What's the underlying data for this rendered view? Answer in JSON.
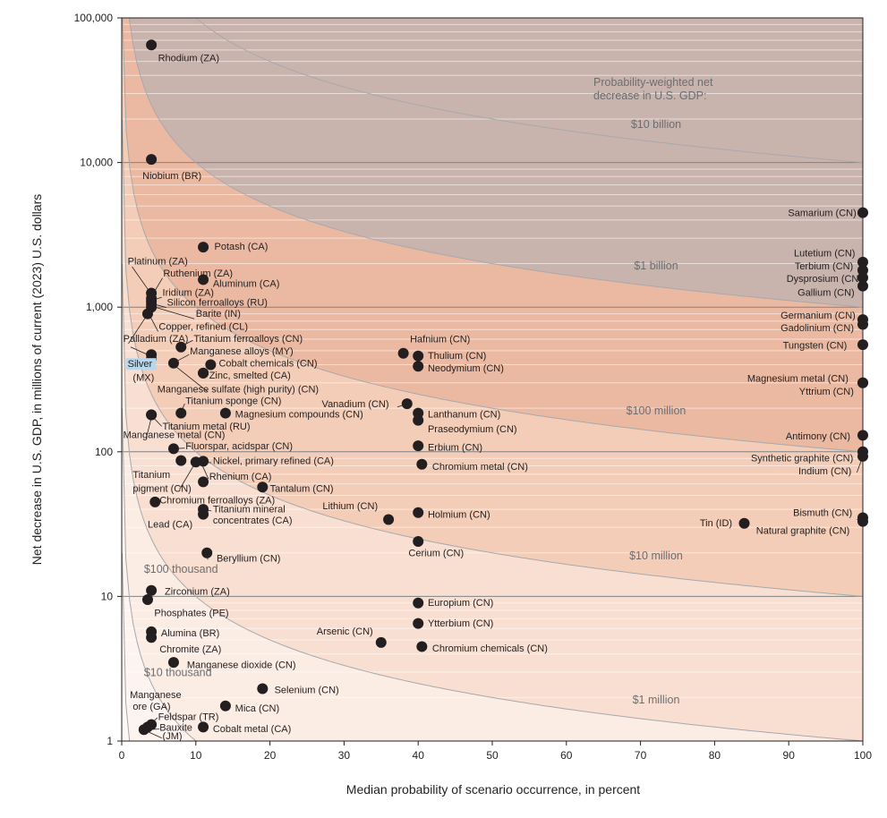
{
  "chart_data": {
    "type": "scatter",
    "title": "",
    "xlabel": "Median probability of scenario occurrence, in percent",
    "ylabel": "Net decrease in U.S. GDP, in millions of current (2023) U.S. dollars",
    "xlim": [
      0,
      100
    ],
    "ylim": [
      1,
      100000
    ],
    "yscale": "log",
    "grid": "horizontal minor lines (log scale)",
    "x_ticks": [
      "0",
      "10",
      "20",
      "30",
      "40",
      "50",
      "60",
      "70",
      "80",
      "90",
      "100"
    ],
    "y_ticks": [
      "1",
      "10",
      "100",
      "1,000",
      "10,000",
      "100,000"
    ],
    "colors": {
      "point": "#231f20",
      "highlight": "#b9d7ec",
      "band_10b": "#c9b3ad",
      "band_1b": "#ebb9a1",
      "band_100m": "#f3cdb7",
      "band_10m": "#f8dfd1",
      "band_1m": "#fbece4",
      "band_100k": "#fdf4ef",
      "band_low": "#fff9f6"
    },
    "legend_title": [
      "Probability-weighted net",
      "decrease in U.S. GDP:"
    ],
    "contours": [
      {
        "label": "$10 billion",
        "value": 10000
      },
      {
        "label": "$1 billion",
        "value": 1000
      },
      {
        "label": "$100 million",
        "value": 100
      },
      {
        "label": "$10 million",
        "value": 10
      },
      {
        "label": "$1 million",
        "value": 1
      },
      {
        "label": "$100 thousand",
        "value": 0.1
      },
      {
        "label": "$10 thousand",
        "value": 0.01
      }
    ],
    "points": [
      {
        "name": "Rhodium (ZA)",
        "x": 4,
        "y": 65000
      },
      {
        "name": "Niobium (BR)",
        "x": 4,
        "y": 10500
      },
      {
        "name": "Potash (CA)",
        "x": 11,
        "y": 2600
      },
      {
        "name": "Platinum (ZA)",
        "x": 4,
        "y": 1250
      },
      {
        "name": "Ruthenium (ZA)",
        "x": 4,
        "y": 1150
      },
      {
        "name": "Aluminum (CA)",
        "x": 11,
        "y": 1550
      },
      {
        "name": "Iridium (ZA)",
        "x": 4,
        "y": 1100
      },
      {
        "name": "Silicon ferroalloys (RU)",
        "x": 4,
        "y": 1050
      },
      {
        "name": "Barite (IN)",
        "x": 4,
        "y": 1000
      },
      {
        "name": "Copper, refined (CL)",
        "x": 3.5,
        "y": 900
      },
      {
        "name": "Palladium (ZA)",
        "x": 4,
        "y": 470
      },
      {
        "name": "Silver (MX)",
        "x": 4,
        "y": 440
      },
      {
        "name": "Titanium ferroalloys (CN)",
        "x": 8,
        "y": 530
      },
      {
        "name": "Manganese alloys (MY)",
        "x": 7,
        "y": 410
      },
      {
        "name": "Cobalt chemicals (CN)",
        "x": 12,
        "y": 400
      },
      {
        "name": "Zinc, smelted (CA)",
        "x": 11,
        "y": 350
      },
      {
        "name": "Manganese sulfate (high purity) (CN)",
        "x": 11,
        "y": 350
      },
      {
        "name": "Titanium sponge (CN)",
        "x": 8,
        "y": 185
      },
      {
        "name": "Titanium metal (RU)",
        "x": 4,
        "y": 180
      },
      {
        "name": "Magnesium compounds (CN)",
        "x": 14,
        "y": 185
      },
      {
        "name": "Manganese metal (CN)",
        "x": 4,
        "y": 180
      },
      {
        "name": "Fluorspar, acidspar (CN)",
        "x": 7,
        "y": 105
      },
      {
        "name": "Nickel, primary refined (CA)",
        "x": 8,
        "y": 87
      },
      {
        "name": "Rhenium (CA)",
        "x": 10,
        "y": 85
      },
      {
        "name": "Titanium pigment (CN)",
        "x": 11,
        "y": 86
      },
      {
        "name": "Tantalum (CN)",
        "x": 19,
        "y": 57
      },
      {
        "name": "Chromium ferroalloys (ZA)",
        "x": 11,
        "y": 62
      },
      {
        "name": "Lead (CA)",
        "x": 4.5,
        "y": 45
      },
      {
        "name": "Titanium mineral concentrates (CA)",
        "x": 11,
        "y": 37
      },
      {
        "name": "Titanium mineral concentrates (CA) ",
        "x": 11,
        "y": 40
      },
      {
        "name": "Beryllium (CN)",
        "x": 11.5,
        "y": 20
      },
      {
        "name": "Zirconium (ZA)",
        "x": 4,
        "y": 11
      },
      {
        "name": "Phosphates (PE)",
        "x": 3.5,
        "y": 9.5
      },
      {
        "name": "Alumina (BR)",
        "x": 4,
        "y": 5.7
      },
      {
        "name": "Chromite (ZA)",
        "x": 4,
        "y": 5.2
      },
      {
        "name": "Manganese dioxide (CN)",
        "x": 7,
        "y": 3.5
      },
      {
        "name": "Selenium (CN)",
        "x": 19,
        "y": 2.3
      },
      {
        "name": "Mica (CN)",
        "x": 14,
        "y": 1.75
      },
      {
        "name": "Manganese ore (GA)",
        "x": 3.5,
        "y": 1.25
      },
      {
        "name": "Feldspar (TR)",
        "x": 4,
        "y": 1.3
      },
      {
        "name": "Bauxite (JM)",
        "x": 3,
        "y": 1.2
      },
      {
        "name": "Cobalt metal (CA)",
        "x": 11,
        "y": 1.25
      },
      {
        "name": "Hafnium (CN)",
        "x": 38,
        "y": 480
      },
      {
        "name": "Thulium (CN)",
        "x": 40,
        "y": 460
      },
      {
        "name": "Neodymium (CN)",
        "x": 40,
        "y": 390
      },
      {
        "name": "Vanadium (CN)",
        "x": 38.5,
        "y": 215
      },
      {
        "name": "Lanthanum (CN)",
        "x": 40,
        "y": 185
      },
      {
        "name": "Praseodymium (CN)",
        "x": 40,
        "y": 165
      },
      {
        "name": "Erbium (CN)",
        "x": 40,
        "y": 110
      },
      {
        "name": "Chromium metal (CN)",
        "x": 40.5,
        "y": 82
      },
      {
        "name": "Lithium (CN)",
        "x": 36,
        "y": 34
      },
      {
        "name": "Holmium (CN)",
        "x": 40,
        "y": 38
      },
      {
        "name": "Cerium (CN)",
        "x": 40,
        "y": 24
      },
      {
        "name": "Europium (CN)",
        "x": 40,
        "y": 9
      },
      {
        "name": "Ytterbium (CN)",
        "x": 40,
        "y": 6.5
      },
      {
        "name": "Arsenic (CN)",
        "x": 35,
        "y": 4.8
      },
      {
        "name": "Chromium chemicals (CN)",
        "x": 40.5,
        "y": 4.5
      },
      {
        "name": "Tin (ID)",
        "x": 84,
        "y": 32
      },
      {
        "name": "Samarium (CN)",
        "x": 100,
        "y": 4500
      },
      {
        "name": "Lutetium (CN)",
        "x": 100,
        "y": 2050
      },
      {
        "name": "Terbium (CN)",
        "x": 100,
        "y": 1800
      },
      {
        "name": "Dysprosium (CN)",
        "x": 100,
        "y": 1600
      },
      {
        "name": "Gallium (CN)",
        "x": 100,
        "y": 1400
      },
      {
        "name": "Germanium (CN)",
        "x": 100,
        "y": 820
      },
      {
        "name": "Gadolinium (CN)",
        "x": 100,
        "y": 760
      },
      {
        "name": "Tungsten (CN)",
        "x": 100,
        "y": 550
      },
      {
        "name": "Magnesium metal (CN)",
        "x": 100,
        "y": 300
      },
      {
        "name": "Yttrium (CN)",
        "x": 100,
        "y": 300
      },
      {
        "name": "Antimony (CN)",
        "x": 100,
        "y": 130
      },
      {
        "name": "Synthetic graphite (CN)",
        "x": 100,
        "y": 100
      },
      {
        "name": "Indium (CN)",
        "x": 100,
        "y": 93
      },
      {
        "name": "Bismuth (CN)",
        "x": 100,
        "y": 35
      },
      {
        "name": "Natural graphite (CN)",
        "x": 100,
        "y": 33
      }
    ],
    "labels": [
      {
        "text": "Rhodium (ZA)",
        "x": 4.9,
        "y": 50000
      },
      {
        "text": "Niobium (BR)",
        "x": 2.8,
        "y": 7700
      },
      {
        "text": "Potash (CA)",
        "x": 12.5,
        "y": 2500
      },
      {
        "text": "Platinum (ZA)",
        "x": 0.8,
        "y": 1980
      },
      {
        "text": "Ruthenium (ZA)",
        "x": 5.6,
        "y": 1630
      },
      {
        "text": "Aluminum (CA)",
        "x": 12.3,
        "y": 1380
      },
      {
        "text": "Iridium (ZA)",
        "x": 5.5,
        "y": 1200
      },
      {
        "text": "Silicon ferroalloys (RU)",
        "x": 6.1,
        "y": 1025
      },
      {
        "text": "Barite (IN)",
        "x": 10.0,
        "y": 855
      },
      {
        "text": "Copper, refined (CL)",
        "x": 5.0,
        "y": 695
      },
      {
        "text": "Palladium (ZA)",
        "x": 0.2,
        "y": 575
      },
      {
        "text": "Titanium ferroalloys (CN)",
        "x": 9.7,
        "y": 575
      },
      {
        "text": "Manganese alloys (MY)",
        "x": 9.2,
        "y": 470
      },
      {
        "text": "Silver",
        "x": 0.8,
        "y": 385
      },
      {
        "text": "(MX)",
        "x": 1.5,
        "y": 310
      },
      {
        "text": "Cobalt chemicals (CN)",
        "x": 13.1,
        "y": 390
      },
      {
        "text": "Zinc, smelted (CA)",
        "x": 11.8,
        "y": 320
      },
      {
        "text": "Manganese sulfate (high purity) (CN)",
        "x": 4.8,
        "y": 257
      },
      {
        "text": "Titanium sponge (CN)",
        "x": 8.6,
        "y": 213
      },
      {
        "text": "Magnesium compounds (CN)",
        "x": 15.3,
        "y": 172
      },
      {
        "text": "Titanium metal (RU)",
        "x": 5.5,
        "y": 142
      },
      {
        "text": "Manganese metal (CN)",
        "x": 0.2,
        "y": 124
      },
      {
        "text": "Fluorspar, acidspar (CN)",
        "x": 8.6,
        "y": 104
      },
      {
        "text": "Nickel, primary refined (CA)",
        "x": 12.3,
        "y": 82
      },
      {
        "text": "Titanium",
        "x": 1.5,
        "y": 66
      },
      {
        "text": "Rhenium (CA)",
        "x": 11.8,
        "y": 64
      },
      {
        "text": "pigment (CN)",
        "x": 1.5,
        "y": 53
      },
      {
        "text": "Tantalum (CN)",
        "x": 20.0,
        "y": 53
      },
      {
        "text": "Chromium ferroalloys (ZA)",
        "x": 5.1,
        "y": 44
      },
      {
        "text": "Titanium mineral",
        "x": 12.3,
        "y": 38
      },
      {
        "text": "concentrates (CA)",
        "x": 12.3,
        "y": 32
      },
      {
        "text": "Lead (CA)",
        "x": 3.5,
        "y": 30
      },
      {
        "text": "Beryllium (CN)",
        "x": 12.8,
        "y": 17.4
      },
      {
        "text": "$100 thousand",
        "x": 3.0,
        "y": 14.6,
        "style": "band"
      },
      {
        "text": "Zirconium (ZA)",
        "x": 5.8,
        "y": 10.3
      },
      {
        "text": "Phosphates (PE)",
        "x": 4.4,
        "y": 7.3
      },
      {
        "text": "Alumina (BR)",
        "x": 5.3,
        "y": 5.3
      },
      {
        "text": "Chromite (ZA)",
        "x": 5.1,
        "y": 4.1
      },
      {
        "text": "Manganese dioxide (CN)",
        "x": 8.8,
        "y": 3.2
      },
      {
        "text": "$10 thousand",
        "x": 3.0,
        "y": 2.8,
        "style": "band"
      },
      {
        "text": "Selenium (CN)",
        "x": 20.6,
        "y": 2.14
      },
      {
        "text": "Manganese",
        "x": 1.1,
        "y": 1.98
      },
      {
        "text": "ore (GA)",
        "x": 1.5,
        "y": 1.65
      },
      {
        "text": "Mica (CN)",
        "x": 15.3,
        "y": 1.6
      },
      {
        "text": "Feldspar (TR)",
        "x": 4.9,
        "y": 1.4
      },
      {
        "text": "Bauxite",
        "x": 5.1,
        "y": 1.18
      },
      {
        "text": "Cobalt metal (CA)",
        "x": 12.3,
        "y": 1.15
      },
      {
        "text": "(JM)",
        "x": 5.5,
        "y": 1.03
      },
      {
        "text": "Hafnium (CN)",
        "x": 38.9,
        "y": 570
      },
      {
        "text": "Thulium (CN)",
        "x": 41.3,
        "y": 440
      },
      {
        "text": "Neodymium (CN)",
        "x": 41.3,
        "y": 360
      },
      {
        "text": "Vanadium (CN)",
        "x": 27.0,
        "y": 204
      },
      {
        "text": "Lanthanum (CN)",
        "x": 41.3,
        "y": 172
      },
      {
        "text": "Praseodymium (CN)",
        "x": 41.3,
        "y": 136
      },
      {
        "text": "Erbium (CN)",
        "x": 41.3,
        "y": 102
      },
      {
        "text": "Chromium metal (CN)",
        "x": 41.9,
        "y": 75
      },
      {
        "text": "Lithium (CN)",
        "x": 27.1,
        "y": 40
      },
      {
        "text": "Holmium (CN)",
        "x": 41.3,
        "y": 35
      },
      {
        "text": "Cerium (CN)",
        "x": 38.7,
        "y": 19
      },
      {
        "text": "Europium (CN)",
        "x": 41.3,
        "y": 8.6
      },
      {
        "text": "Ytterbium (CN)",
        "x": 41.3,
        "y": 6.2
      },
      {
        "text": "Arsenic (CN)",
        "x": 26.3,
        "y": 5.45
      },
      {
        "text": "Chromium chemicals (CN)",
        "x": 41.9,
        "y": 4.15
      },
      {
        "text": "Tin (ID)",
        "x": 78.0,
        "y": 30.5
      },
      {
        "text": "Samarium (CN)",
        "x": 89.9,
        "y": 4250
      },
      {
        "text": "Lutetium (CN)",
        "x": 90.7,
        "y": 2240
      },
      {
        "text": "Terbium (CN)",
        "x": 90.8,
        "y": 1820
      },
      {
        "text": "Dysprosium (CN)",
        "x": 89.7,
        "y": 1490
      },
      {
        "text": "Gallium (CN)",
        "x": 91.2,
        "y": 1200
      },
      {
        "text": "Germanium (CN)",
        "x": 88.9,
        "y": 835
      },
      {
        "text": "Gadolinium (CN)",
        "x": 88.9,
        "y": 685
      },
      {
        "text": "Tungsten (CN)",
        "x": 89.2,
        "y": 518
      },
      {
        "text": "Magnesium metal (CN)",
        "x": 84.4,
        "y": 306
      },
      {
        "text": "Yttrium (CN)",
        "x": 91.4,
        "y": 248
      },
      {
        "text": "Antimony (CN)",
        "x": 89.6,
        "y": 122
      },
      {
        "text": "Synthetic graphite (CN)",
        "x": 84.9,
        "y": 86
      },
      {
        "text": "Indium (CN)",
        "x": 91.3,
        "y": 70
      },
      {
        "text": "Bismuth (CN)",
        "x": 90.6,
        "y": 36
      },
      {
        "text": "Natural graphite (CN)",
        "x": 85.6,
        "y": 27
      }
    ],
    "leaders": [
      [
        [
          1.4,
          1900
        ],
        [
          3.8,
          1270
        ]
      ],
      [
        [
          5.5,
          1590
        ],
        [
          4.0,
          1180
        ]
      ],
      [
        [
          5.4,
          1170
        ],
        [
          4.0,
          1110
        ]
      ],
      [
        [
          6.0,
          995
        ],
        [
          4.0,
          1060
        ]
      ],
      [
        [
          9.8,
          830
        ],
        [
          4.2,
          1010
        ]
      ],
      [
        [
          4.9,
          680
        ],
        [
          3.6,
          910
        ]
      ],
      [
        [
          0.9,
          560
        ],
        [
          3.4,
          880
        ]
      ],
      [
        [
          1.2,
          530
        ],
        [
          3.9,
          460
        ]
      ],
      [
        [
          9.6,
          590
        ],
        [
          8.0,
          535
        ]
      ],
      [
        [
          9.1,
          470
        ],
        [
          7.1,
          415
        ]
      ],
      [
        [
          11.6,
          260
        ],
        [
          7.0,
          400
        ]
      ],
      [
        [
          8.5,
          215
        ],
        [
          8.0,
          188
        ]
      ],
      [
        [
          5.4,
          150
        ],
        [
          4.0,
          178
        ]
      ],
      [
        [
          3.3,
          124
        ],
        [
          4.0,
          172
        ]
      ],
      [
        [
          8.5,
          106
        ],
        [
          7.0,
          105
        ]
      ],
      [
        [
          12.1,
          84
        ],
        [
          10.0,
          85
        ]
      ],
      [
        [
          11.7,
          65
        ],
        [
          10.8,
          82
        ]
      ],
      [
        [
          7.8,
          55
        ],
        [
          10.0,
          85
        ]
      ],
      [
        [
          5.0,
          45
        ],
        [
          4.5,
          45
        ]
      ],
      [
        [
          12.1,
          39
        ],
        [
          11.0,
          40
        ]
      ],
      [
        [
          11.6,
          18
        ],
        [
          11.5,
          20
        ]
      ],
      [
        [
          4.8,
          1.45
        ],
        [
          4.0,
          1.32
        ]
      ],
      [
        [
          5.1,
          1.21
        ],
        [
          3.2,
          1.2
        ]
      ],
      [
        [
          5.4,
          1.05
        ],
        [
          3.2,
          1.18
        ]
      ],
      [
        [
          37.2,
          204
        ],
        [
          38.5,
          215
        ]
      ],
      [
        [
          99.2,
          72
        ],
        [
          100,
          93
        ]
      ],
      [
        [
          99.2,
          34
        ],
        [
          100,
          34
        ]
      ]
    ]
  }
}
